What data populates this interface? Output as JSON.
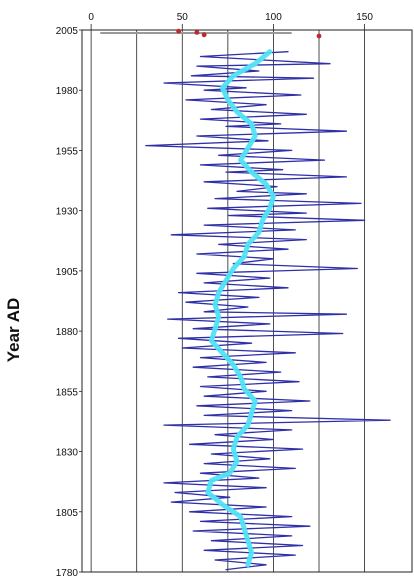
{
  "chart_data": {
    "type": "line",
    "title": "",
    "xlabel": "",
    "ylabel": "Year AD",
    "xlim": [
      -5,
      176
    ],
    "ylim": [
      1780,
      2005
    ],
    "x_ticks": [
      0,
      50,
      100,
      150
    ],
    "y_ticks": [
      2005,
      1980,
      1955,
      1930,
      1905,
      1880,
      1855,
      1830,
      1805,
      1780
    ],
    "grid": "vertical",
    "colors": {
      "annual": "#2f2fa8",
      "smoothed": "#4fe3f5",
      "markers": "#c0262b",
      "grid": "#222222"
    },
    "series": [
      {
        "style": "annual",
        "points": [
          [
            108,
            1996
          ],
          [
            60,
            1994
          ],
          [
            131,
            1991
          ],
          [
            58,
            1990
          ],
          [
            92,
            1988
          ],
          [
            55,
            1986
          ],
          [
            122,
            1985
          ],
          [
            40,
            1983
          ],
          [
            85,
            1981
          ],
          [
            62,
            1980
          ],
          [
            115,
            1978
          ],
          [
            52,
            1976
          ],
          [
            96,
            1974
          ],
          [
            66,
            1972
          ],
          [
            118,
            1970
          ],
          [
            60,
            1968
          ],
          [
            104,
            1966
          ],
          [
            74,
            1965
          ],
          [
            140,
            1963
          ],
          [
            58,
            1961
          ],
          [
            97,
            1959
          ],
          [
            30,
            1957
          ],
          [
            110,
            1955
          ],
          [
            70,
            1953
          ],
          [
            128,
            1951
          ],
          [
            60,
            1949
          ],
          [
            105,
            1947
          ],
          [
            74,
            1946
          ],
          [
            140,
            1944
          ],
          [
            62,
            1942
          ],
          [
            102,
            1940
          ],
          [
            80,
            1938
          ],
          [
            118,
            1937
          ],
          [
            68,
            1935
          ],
          [
            148,
            1933
          ],
          [
            64,
            1931
          ],
          [
            118,
            1929
          ],
          [
            75,
            1928
          ],
          [
            150,
            1926
          ],
          [
            62,
            1924
          ],
          [
            112,
            1922
          ],
          [
            44,
            1920
          ],
          [
            118,
            1918
          ],
          [
            70,
            1916
          ],
          [
            108,
            1914
          ],
          [
            58,
            1912
          ],
          [
            100,
            1910
          ],
          [
            78,
            1908
          ],
          [
            146,
            1906
          ],
          [
            58,
            1904
          ],
          [
            98,
            1902
          ],
          [
            62,
            1900
          ],
          [
            108,
            1898
          ],
          [
            48,
            1896
          ],
          [
            92,
            1894
          ],
          [
            52,
            1892
          ],
          [
            86,
            1890
          ],
          [
            62,
            1888
          ],
          [
            140,
            1887
          ],
          [
            42,
            1885
          ],
          [
            98,
            1883
          ],
          [
            56,
            1881
          ],
          [
            138,
            1879
          ],
          [
            48,
            1877
          ],
          [
            88,
            1875
          ],
          [
            50,
            1873
          ],
          [
            112,
            1871
          ],
          [
            60,
            1869
          ],
          [
            96,
            1867
          ],
          [
            56,
            1865
          ],
          [
            104,
            1863
          ],
          [
            64,
            1861
          ],
          [
            114,
            1859
          ],
          [
            60,
            1857
          ],
          [
            96,
            1855
          ],
          [
            62,
            1853
          ],
          [
            120,
            1851
          ],
          [
            58,
            1849
          ],
          [
            110,
            1847
          ],
          [
            62,
            1845
          ],
          [
            164,
            1843
          ],
          [
            40,
            1841
          ],
          [
            110,
            1839
          ],
          [
            68,
            1837
          ],
          [
            100,
            1835
          ],
          [
            54,
            1833
          ],
          [
            116,
            1831
          ],
          [
            66,
            1829
          ],
          [
            98,
            1827
          ],
          [
            62,
            1825
          ],
          [
            112,
            1823
          ],
          [
            60,
            1821
          ],
          [
            92,
            1819
          ],
          [
            40,
            1817
          ],
          [
            96,
            1815
          ],
          [
            46,
            1813
          ],
          [
            76,
            1811
          ],
          [
            44,
            1809
          ],
          [
            96,
            1807
          ],
          [
            54,
            1805
          ],
          [
            110,
            1803
          ],
          [
            60,
            1801
          ],
          [
            120,
            1799
          ],
          [
            56,
            1797
          ],
          [
            110,
            1795
          ],
          [
            66,
            1793
          ],
          [
            116,
            1791
          ],
          [
            62,
            1789
          ],
          [
            112,
            1787
          ],
          [
            68,
            1785
          ],
          [
            96,
            1783
          ],
          [
            74,
            1781
          ]
        ]
      },
      {
        "style": "smoothed",
        "points": [
          [
            98,
            1996
          ],
          [
            90,
            1991
          ],
          [
            78,
            1986
          ],
          [
            72,
            1981
          ],
          [
            75,
            1976
          ],
          [
            80,
            1971
          ],
          [
            88,
            1966
          ],
          [
            90,
            1961
          ],
          [
            86,
            1956
          ],
          [
            82,
            1951
          ],
          [
            88,
            1946
          ],
          [
            96,
            1941
          ],
          [
            100,
            1936
          ],
          [
            98,
            1931
          ],
          [
            94,
            1926
          ],
          [
            92,
            1921
          ],
          [
            86,
            1916
          ],
          [
            84,
            1911
          ],
          [
            78,
            1906
          ],
          [
            74,
            1901
          ],
          [
            70,
            1896
          ],
          [
            68,
            1891
          ],
          [
            70,
            1886
          ],
          [
            68,
            1881
          ],
          [
            66,
            1876
          ],
          [
            72,
            1871
          ],
          [
            78,
            1866
          ],
          [
            82,
            1861
          ],
          [
            84,
            1856
          ],
          [
            90,
            1851
          ],
          [
            88,
            1846
          ],
          [
            86,
            1841
          ],
          [
            80,
            1836
          ],
          [
            78,
            1831
          ],
          [
            80,
            1826
          ],
          [
            76,
            1821
          ],
          [
            66,
            1818
          ],
          [
            64,
            1813
          ],
          [
            72,
            1808
          ],
          [
            82,
            1803
          ],
          [
            84,
            1798
          ],
          [
            86,
            1793
          ],
          [
            88,
            1788
          ],
          [
            86,
            1783
          ]
        ]
      }
    ],
    "markers": [
      [
        48,
        2004.5
      ],
      [
        58,
        2004
      ],
      [
        62,
        2003
      ],
      [
        125,
        2002.5
      ]
    ]
  }
}
